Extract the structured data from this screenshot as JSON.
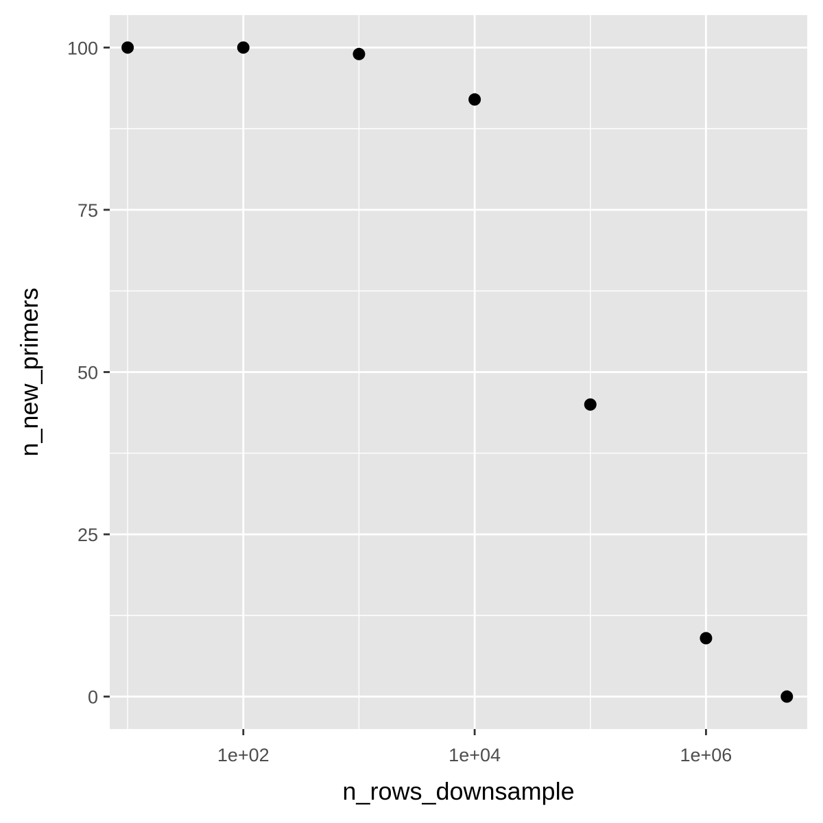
{
  "chart_data": {
    "type": "scatter",
    "title": "",
    "xlabel": "n_rows_downsample",
    "ylabel": "n_new_primers",
    "x_scale": "log10",
    "xlim": [
      7,
      7500000
    ],
    "ylim": [
      -5,
      105
    ],
    "x_ticks": [
      {
        "value": 100,
        "label": "1e+02"
      },
      {
        "value": 10000,
        "label": "1e+04"
      },
      {
        "value": 1000000,
        "label": "1e+06"
      }
    ],
    "x_minor_gridlines": [
      10,
      1000,
      100000
    ],
    "y_ticks": [
      {
        "value": 0,
        "label": "0"
      },
      {
        "value": 25,
        "label": "25"
      },
      {
        "value": 50,
        "label": "50"
      },
      {
        "value": 75,
        "label": "75"
      },
      {
        "value": 100,
        "label": "100"
      }
    ],
    "y_minor_gridlines": [
      12.5,
      37.5,
      62.5,
      87.5
    ],
    "grid": true,
    "legend": "none",
    "colors": {
      "panel_background": "#e5e5e5",
      "grid": "#ffffff",
      "point": "#000000",
      "tick_mark": "#333333"
    },
    "points": [
      {
        "x": 10,
        "y": 100
      },
      {
        "x": 100,
        "y": 100
      },
      {
        "x": 1000,
        "y": 99
      },
      {
        "x": 10000,
        "y": 92
      },
      {
        "x": 100000,
        "y": 45
      },
      {
        "x": 1000000,
        "y": 9
      },
      {
        "x": 5000000,
        "y": 0
      }
    ]
  }
}
